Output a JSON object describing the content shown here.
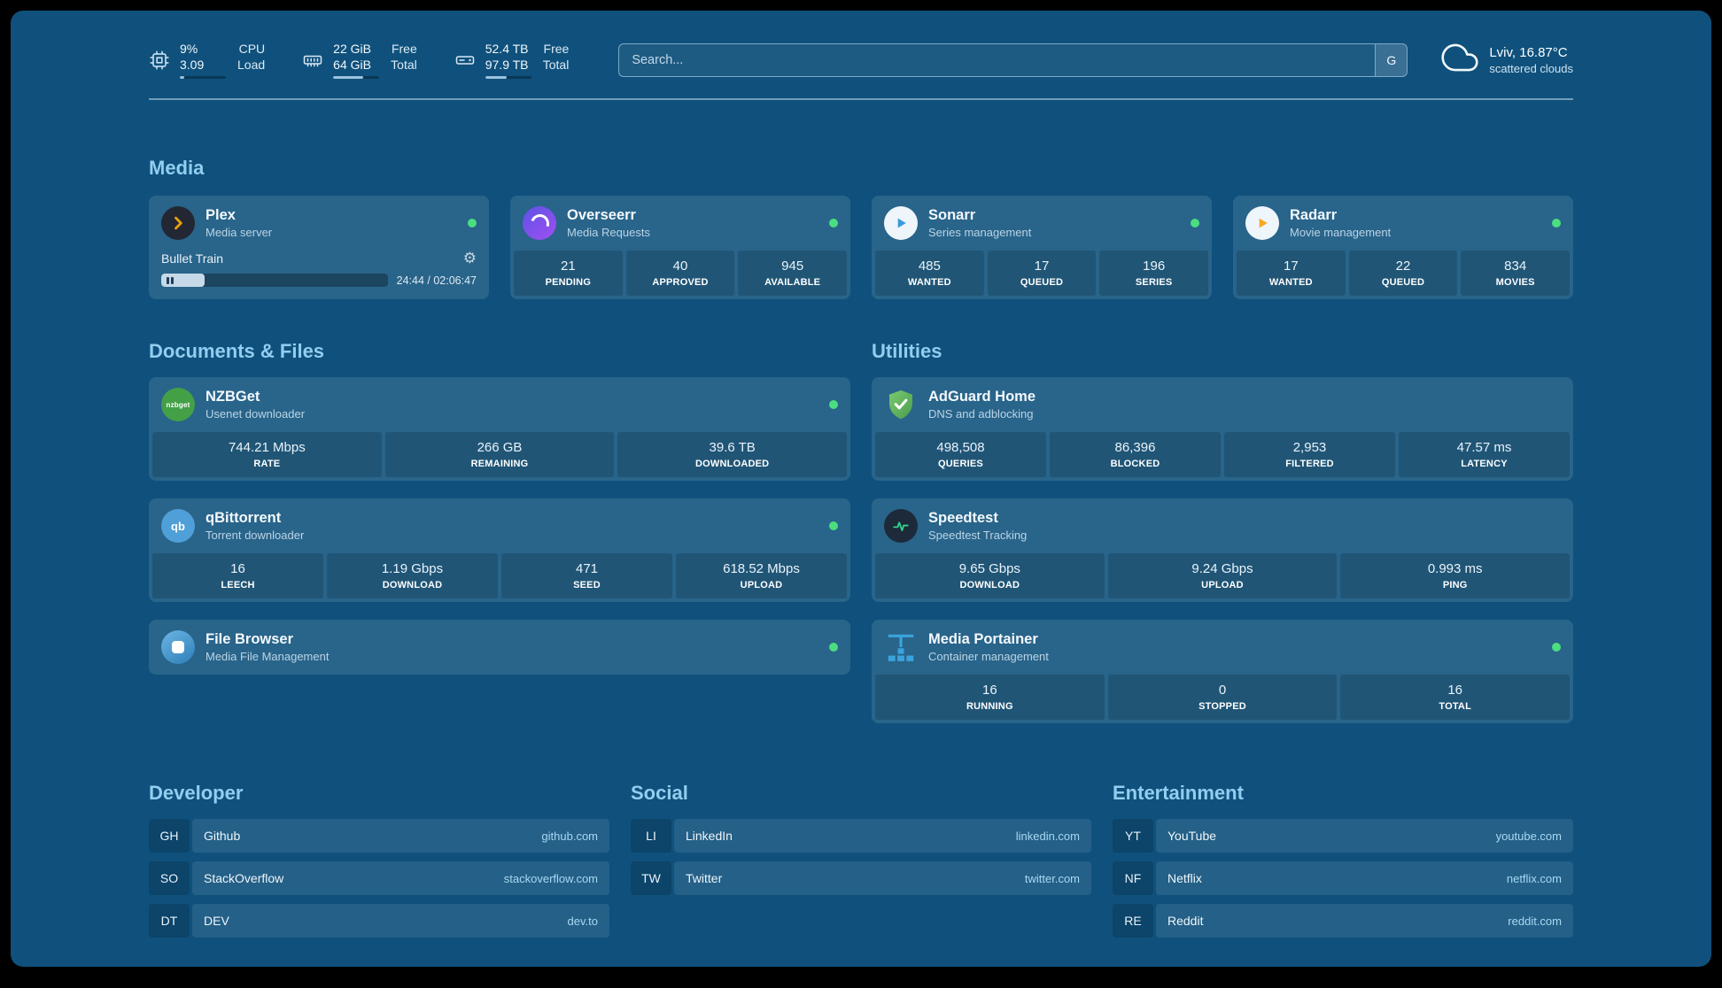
{
  "topbar": {
    "cpu": {
      "value": "9%",
      "load": "3.09",
      "label_top": "CPU",
      "label_bottom": "Load",
      "progress_pct": 9
    },
    "memory": {
      "free": "22 GiB",
      "total": "64 GiB",
      "label_top": "Free",
      "label_bottom": "Total",
      "progress_pct": 66
    },
    "disk": {
      "free": "52.4 TB",
      "total": "97.9 TB",
      "label_top": "Free",
      "label_bottom": "Total",
      "progress_pct": 46
    },
    "search": {
      "placeholder": "Search...",
      "button_label": "G"
    },
    "weather": {
      "location": "Lviv, 16.87°C",
      "condition": "scattered clouds"
    }
  },
  "sections": {
    "media": {
      "title": "Media",
      "cards": [
        {
          "name": "Plex",
          "desc": "Media server",
          "status": "online",
          "media": {
            "title": "Bullet Train",
            "time": "24:44 / 02:06:47",
            "progress_pct": 19
          }
        },
        {
          "name": "Overseerr",
          "desc": "Media Requests",
          "status": "online",
          "stats": [
            {
              "value": "21",
              "label": "PENDING"
            },
            {
              "value": "40",
              "label": "APPROVED"
            },
            {
              "value": "945",
              "label": "AVAILABLE"
            }
          ]
        },
        {
          "name": "Sonarr",
          "desc": "Series management",
          "status": "online",
          "stats": [
            {
              "value": "485",
              "label": "WANTED"
            },
            {
              "value": "17",
              "label": "QUEUED"
            },
            {
              "value": "196",
              "label": "SERIES"
            }
          ]
        },
        {
          "name": "Radarr",
          "desc": "Movie management",
          "status": "online",
          "stats": [
            {
              "value": "17",
              "label": "WANTED"
            },
            {
              "value": "22",
              "label": "QUEUED"
            },
            {
              "value": "834",
              "label": "MOVIES"
            }
          ]
        }
      ]
    },
    "documents": {
      "title": "Documents & Files",
      "cards": [
        {
          "name": "NZBGet",
          "desc": "Usenet downloader",
          "status": "online",
          "stats": [
            {
              "value": "744.21 Mbps",
              "label": "RATE"
            },
            {
              "value": "266 GB",
              "label": "REMAINING"
            },
            {
              "value": "39.6 TB",
              "label": "DOWNLOADED"
            }
          ]
        },
        {
          "name": "qBittorrent",
          "desc": "Torrent downloader",
          "status": "online",
          "stats": [
            {
              "value": "16",
              "label": "LEECH"
            },
            {
              "value": "1.19 Gbps",
              "label": "DOWNLOAD"
            },
            {
              "value": "471",
              "label": "SEED"
            },
            {
              "value": "618.52 Mbps",
              "label": "UPLOAD"
            }
          ]
        },
        {
          "name": "File Browser",
          "desc": "Media File Management",
          "status": "online"
        }
      ]
    },
    "utilities": {
      "title": "Utilities",
      "cards": [
        {
          "name": "AdGuard Home",
          "desc": "DNS and adblocking",
          "stats": [
            {
              "value": "498,508",
              "label": "QUERIES"
            },
            {
              "value": "86,396",
              "label": "BLOCKED"
            },
            {
              "value": "2,953",
              "label": "FILTERED"
            },
            {
              "value": "47.57 ms",
              "label": "LATENCY"
            }
          ]
        },
        {
          "name": "Speedtest",
          "desc": "Speedtest Tracking",
          "stats": [
            {
              "value": "9.65 Gbps",
              "label": "DOWNLOAD"
            },
            {
              "value": "9.24 Gbps",
              "label": "UPLOAD"
            },
            {
              "value": "0.993 ms",
              "label": "PING"
            }
          ]
        },
        {
          "name": "Media Portainer",
          "desc": "Container management",
          "status": "online",
          "stats": [
            {
              "value": "16",
              "label": "RUNNING"
            },
            {
              "value": "0",
              "label": "STOPPED"
            },
            {
              "value": "16",
              "label": "TOTAL"
            }
          ]
        }
      ]
    }
  },
  "bookmarks": {
    "groups": [
      {
        "title": "Developer",
        "items": [
          {
            "abbr": "GH",
            "name": "Github",
            "url": "github.com"
          },
          {
            "abbr": "SO",
            "name": "StackOverflow",
            "url": "stackoverflow.com"
          },
          {
            "abbr": "DT",
            "name": "DEV",
            "url": "dev.to"
          }
        ]
      },
      {
        "title": "Social",
        "items": [
          {
            "abbr": "LI",
            "name": "LinkedIn",
            "url": "linkedin.com"
          },
          {
            "abbr": "TW",
            "name": "Twitter",
            "url": "twitter.com"
          }
        ]
      },
      {
        "title": "Entertainment",
        "items": [
          {
            "abbr": "YT",
            "name": "YouTube",
            "url": "youtube.com"
          },
          {
            "abbr": "NF",
            "name": "Netflix",
            "url": "netflix.com"
          },
          {
            "abbr": "RE",
            "name": "Reddit",
            "url": "reddit.com"
          }
        ]
      }
    ]
  },
  "icons": {
    "gear": "⚙",
    "nzbget_glyph": "nzbget",
    "qbittorrent_glyph": "qb"
  },
  "colors": {
    "page_bg": "#0f517c",
    "card_bg": "#ffffff1c",
    "tile_bg": "#06293f42",
    "heading": "#93cdf0",
    "text": "#f3f9fd",
    "subtext": "#bad4e6",
    "url": "#a8d8f3",
    "online": "#4ade80",
    "bar_fill": "#9cc3de",
    "divider": "#d2ebf580",
    "search_border": "#7fa8c6"
  }
}
